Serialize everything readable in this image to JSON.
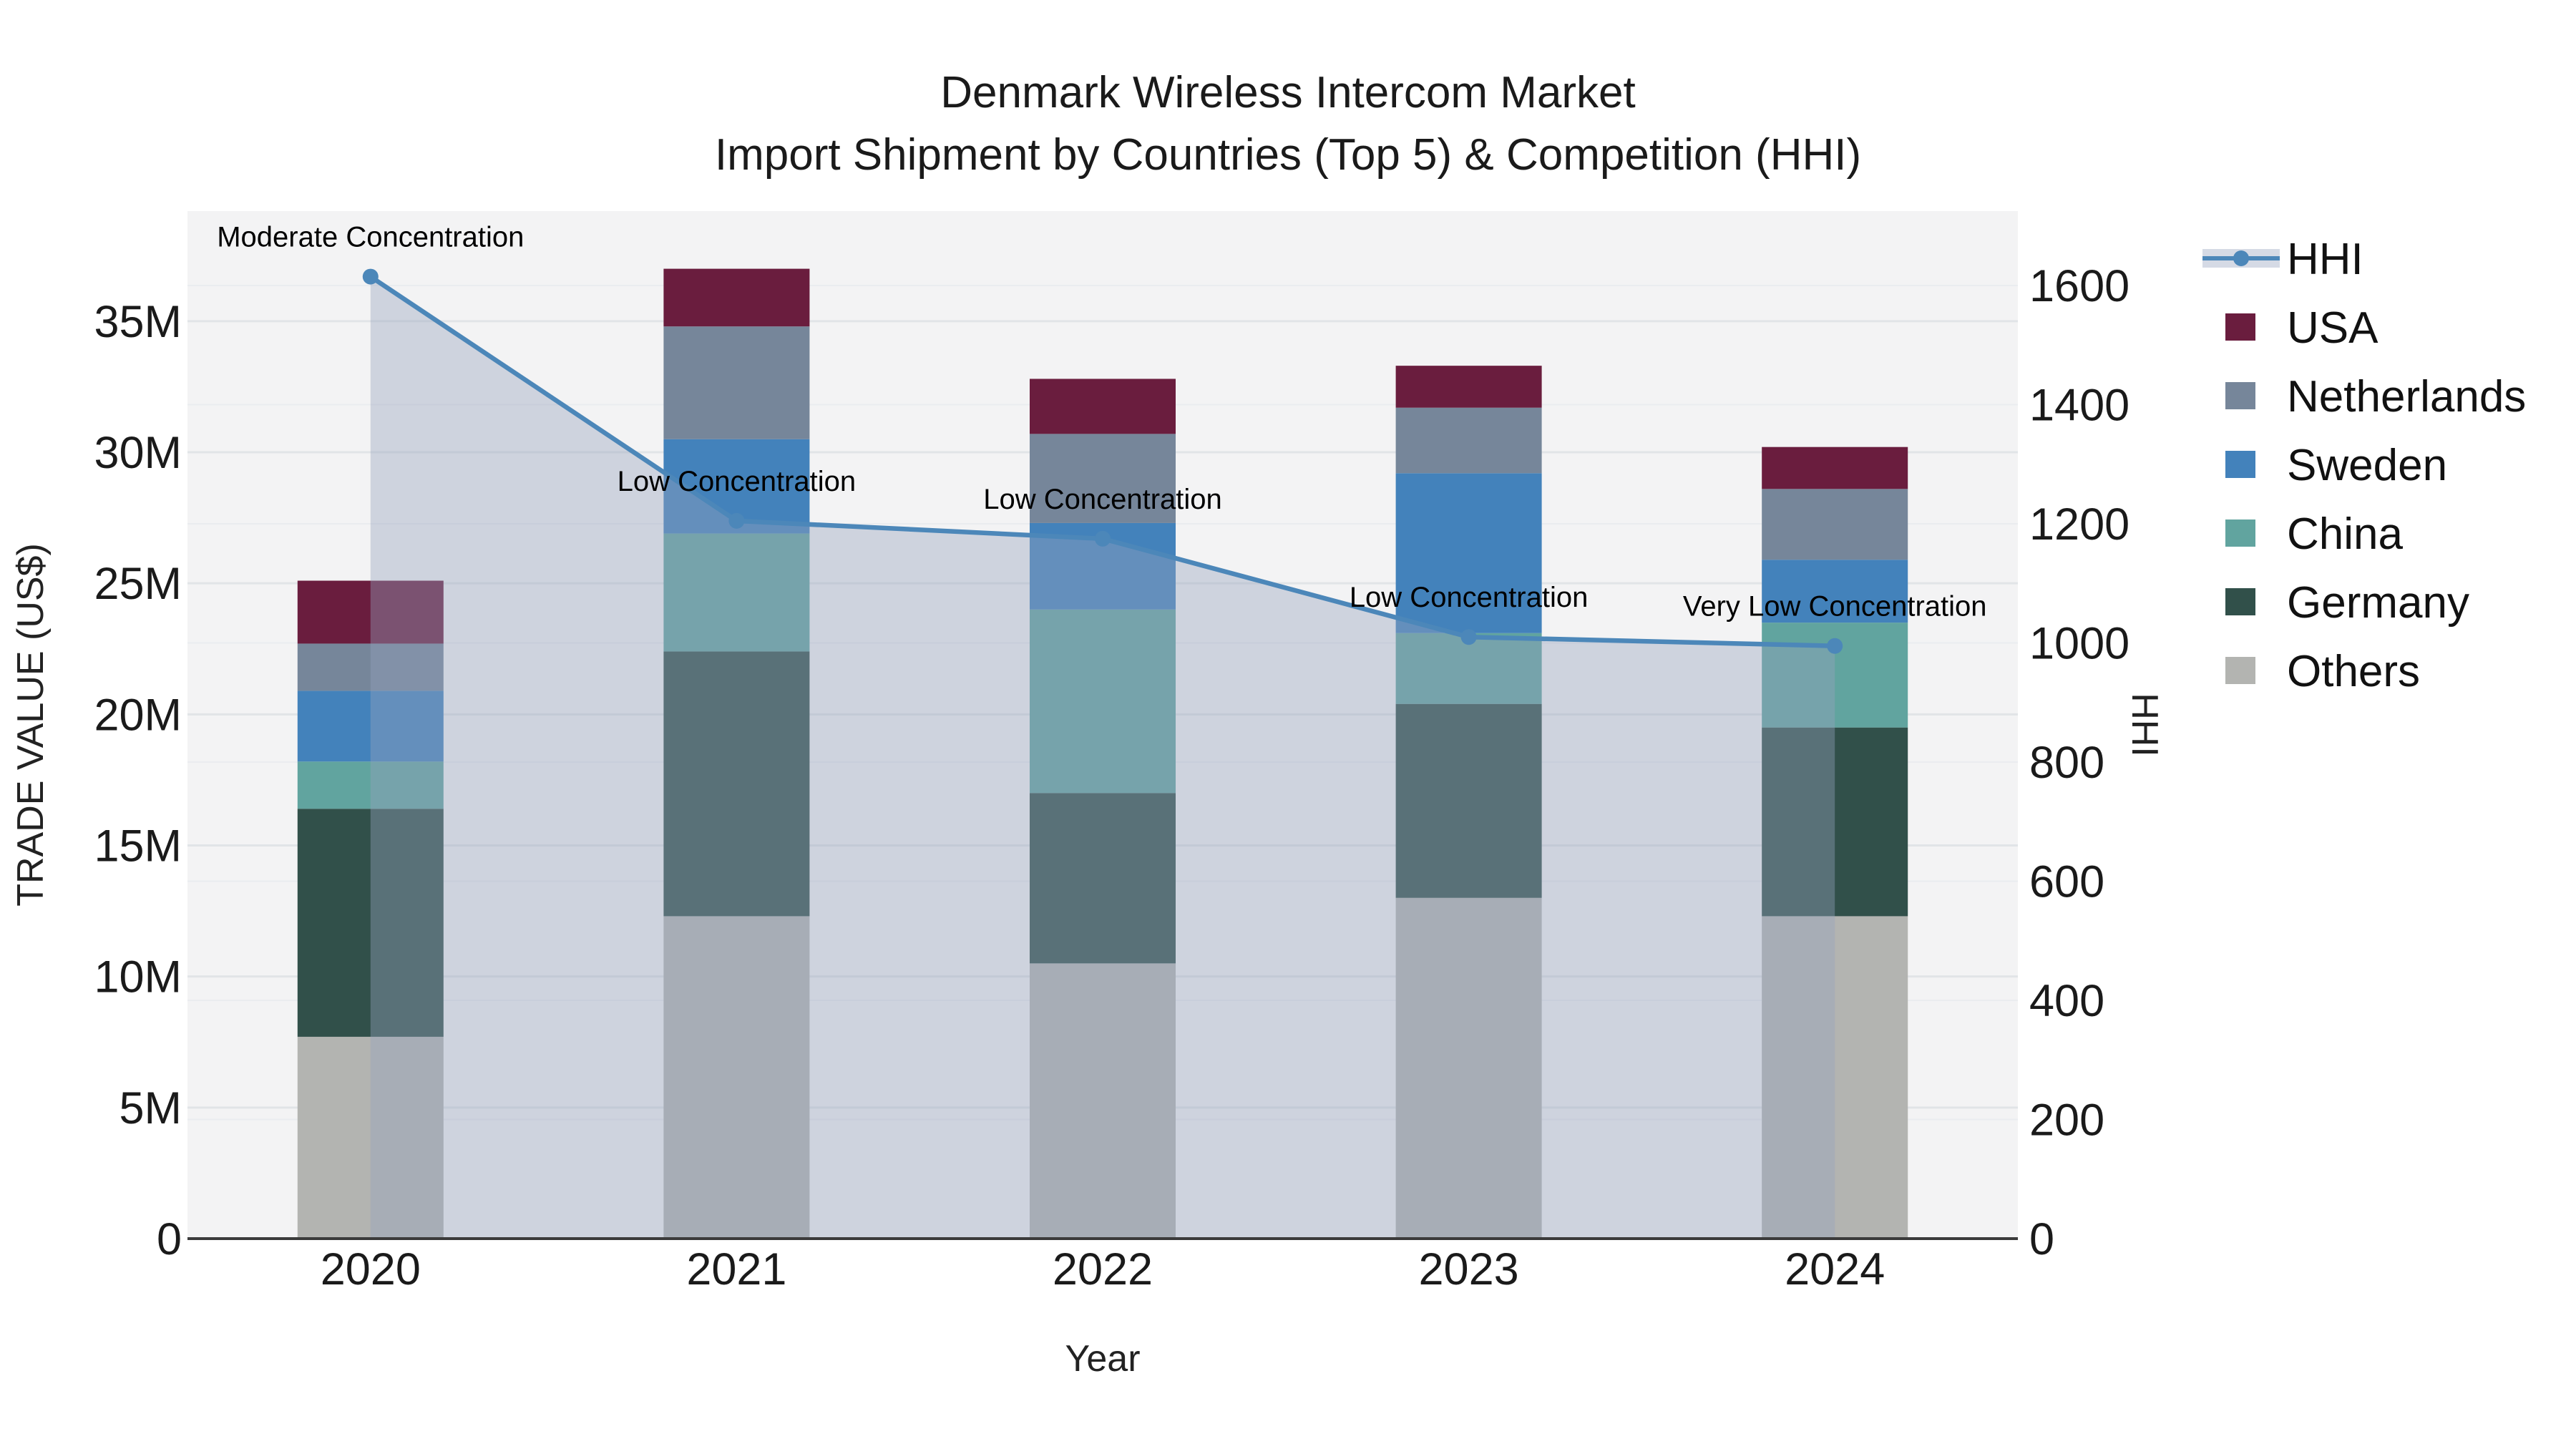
{
  "chart_data": {
    "type": "bar+line",
    "title": "Denmark Wireless Intercom Market",
    "subtitle": "Import Shipment by Countries (Top 5) & Competition (HHI)",
    "xlabel": "Year",
    "ylabel": "TRADE VALUE (US$)",
    "y2label": "HHI",
    "unit": "million US$",
    "categories": [
      "2020",
      "2021",
      "2022",
      "2023",
      "2024"
    ],
    "ylim": [
      0,
      39.2
    ],
    "y2lim": [
      0,
      1725
    ],
    "ytick_labels": [
      "0",
      "5M",
      "10M",
      "15M",
      "20M",
      "25M",
      "30M",
      "35M"
    ],
    "ytick_values": [
      0,
      5,
      10,
      15,
      20,
      25,
      30,
      35
    ],
    "y2tick_values": [
      0,
      200,
      400,
      600,
      800,
      1000,
      1200,
      1400,
      1600
    ],
    "grid": true,
    "legend_position": "right",
    "series": [
      {
        "name": "Others",
        "color": "#b3b4b1",
        "values": [
          7.7,
          12.3,
          10.5,
          13.0,
          12.3
        ]
      },
      {
        "name": "Germany",
        "color": "#31504a",
        "values": [
          8.7,
          10.1,
          6.5,
          7.4,
          7.2
        ]
      },
      {
        "name": "China",
        "color": "#61a49f",
        "values": [
          1.8,
          4.5,
          7.0,
          2.7,
          4.0
        ]
      },
      {
        "name": "Sweden",
        "color": "#4382bb",
        "values": [
          2.7,
          3.6,
          3.3,
          6.1,
          2.4
        ]
      },
      {
        "name": "Netherlands",
        "color": "#76869a",
        "values": [
          1.8,
          4.3,
          3.4,
          2.5,
          2.7
        ]
      },
      {
        "name": "USA",
        "color": "#6a1d3e",
        "values": [
          2.4,
          2.2,
          2.1,
          1.6,
          1.6
        ]
      }
    ],
    "totals": [
      25.1,
      37.0,
      32.8,
      33.3,
      30.2
    ],
    "hhi": {
      "name": "HHI",
      "line_color": "#4c87b9",
      "area_color": "rgba(150,162,190,0.4)",
      "legend_band_color": "#d5dae5",
      "values": [
        1615,
        1205,
        1175,
        1010,
        995
      ]
    },
    "annotations": [
      "Moderate Concentration",
      "Low Concentration",
      "Low Concentration",
      "Low Concentration",
      "Very Low Concentration"
    ],
    "legend": [
      "HHI",
      "USA",
      "Netherlands",
      "Sweden",
      "China",
      "Germany",
      "Others"
    ],
    "colors": {
      "plot_bg": "#f3f3f4",
      "grid_major": "#e1e4e7",
      "grid_minor": "#eaecef",
      "axis_line": "#3b3b3b",
      "text": "#1a1a1a"
    }
  }
}
